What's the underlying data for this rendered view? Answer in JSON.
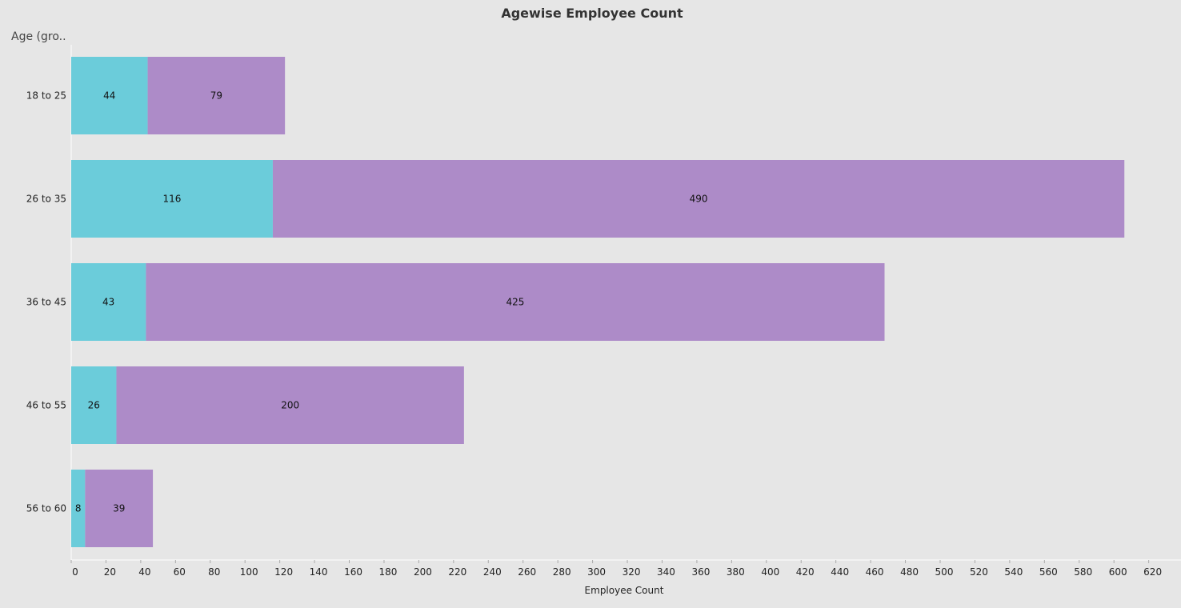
{
  "chart_data": {
    "type": "bar",
    "orientation": "horizontal",
    "stacked": true,
    "title": "Agewise Employee Count",
    "row_header": "Age (gro..",
    "xlabel": "Employee Count",
    "categories": [
      "18 to 25",
      "26 to 35",
      "36 to 45",
      "46 to 55",
      "56 to 60"
    ],
    "series": [
      {
        "color": "#6bccda",
        "values": [
          44,
          116,
          43,
          26,
          8
        ]
      },
      {
        "color": "#ad8bc8",
        "values": [
          79,
          490,
          425,
          200,
          39
        ]
      }
    ],
    "xlim": [
      0,
      620
    ],
    "xticks": [
      0,
      20,
      40,
      60,
      80,
      100,
      120,
      140,
      160,
      180,
      200,
      220,
      240,
      260,
      280,
      300,
      320,
      340,
      360,
      380,
      400,
      420,
      440,
      460,
      480,
      500,
      520,
      540,
      560,
      580,
      600,
      620
    ],
    "grid": false,
    "legend": "none"
  }
}
